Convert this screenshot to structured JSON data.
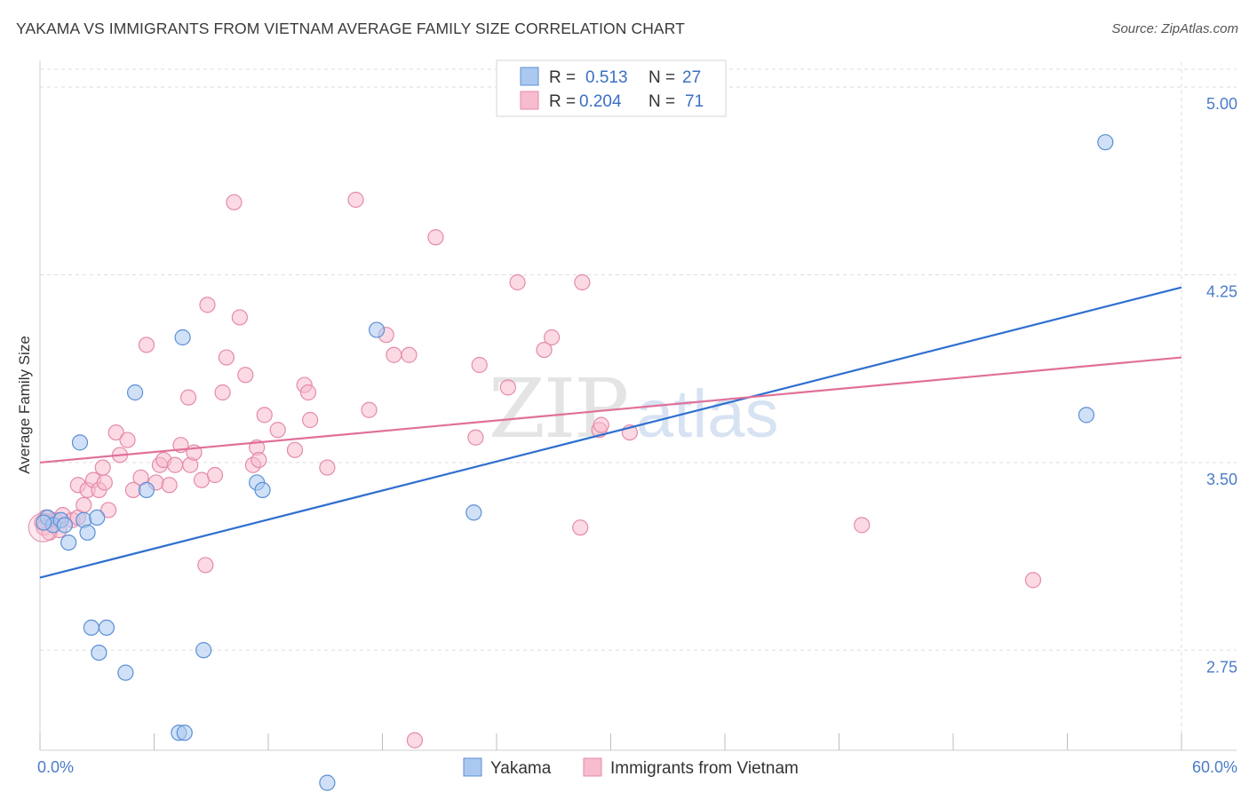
{
  "title": "YAKAMA VS IMMIGRANTS FROM VIETNAM AVERAGE FAMILY SIZE CORRELATION CHART",
  "source": "Source: ZipAtlas.com",
  "watermark": {
    "zip": "ZIP",
    "atlas": "atlas"
  },
  "colors": {
    "blue_fill": "#aac8f0",
    "blue_stroke": "#5b8fd6",
    "blue_line": "#2f6fcf",
    "pink_fill": "#f7bccd",
    "pink_stroke": "#e58aa8",
    "pink_line": "#e0709a",
    "axis_label": "#4a7cc8",
    "grid": "#dddddd"
  },
  "legend": {
    "rows": [
      {
        "r_label": "R =",
        "r_value": "0.513",
        "n_label": "N =",
        "n_value": "27"
      },
      {
        "r_label": "R =",
        "r_value": "0.204",
        "n_label": "N =",
        "n_value": "71"
      }
    ]
  },
  "chart_data": {
    "type": "scatter",
    "title": "YAKAMA VS IMMIGRANTS FROM VIETNAM AVERAGE FAMILY SIZE CORRELATION CHART",
    "xlabel": "",
    "ylabel": "Average Family Size",
    "xlim": [
      0,
      60
    ],
    "ylim": [
      2.35,
      5.1
    ],
    "x_tick_labels": [
      {
        "value": 0,
        "label": "0.0%"
      },
      {
        "value": 60,
        "label": "60.0%"
      }
    ],
    "x_minor_ticks": [
      0,
      6,
      12,
      18,
      24,
      30,
      36,
      42,
      48,
      54,
      60
    ],
    "y_ticks": [
      {
        "value": 5.0,
        "label": "5.00"
      },
      {
        "value": 4.25,
        "label": "4.25"
      },
      {
        "value": 3.5,
        "label": "3.50"
      },
      {
        "value": 2.75,
        "label": "2.75"
      }
    ],
    "grid": true,
    "legend_position": "top-center",
    "series": [
      {
        "name": "Yakama",
        "color": "blue",
        "trend": {
          "x": [
            0,
            60
          ],
          "y": [
            3.04,
            4.2
          ]
        },
        "points": [
          [
            0.4,
            3.28
          ],
          [
            0.7,
            3.25
          ],
          [
            1.1,
            3.27
          ],
          [
            1.3,
            3.25
          ],
          [
            1.5,
            3.18
          ],
          [
            2.1,
            3.58
          ],
          [
            2.3,
            3.27
          ],
          [
            2.5,
            3.22
          ],
          [
            3.0,
            3.28
          ],
          [
            2.7,
            2.84
          ],
          [
            3.5,
            2.84
          ],
          [
            3.1,
            2.74
          ],
          [
            4.5,
            2.66
          ],
          [
            5.6,
            3.39
          ],
          [
            5.0,
            3.78
          ],
          [
            7.5,
            4.0
          ],
          [
            7.3,
            2.42
          ],
          [
            7.6,
            2.42
          ],
          [
            8.6,
            2.75
          ],
          [
            11.4,
            3.42
          ],
          [
            11.7,
            3.39
          ],
          [
            15.1,
            2.22
          ],
          [
            17.7,
            4.03
          ],
          [
            22.8,
            3.3
          ],
          [
            56.0,
            4.78
          ],
          [
            55.0,
            3.69
          ],
          [
            0.2,
            3.26
          ]
        ]
      },
      {
        "name": "Immigrants from Vietnam",
        "color": "pink",
        "trend": {
          "x": [
            0,
            60
          ],
          "y": [
            3.5,
            3.92
          ]
        },
        "points": [
          [
            0.3,
            3.28
          ],
          [
            0.8,
            3.27
          ],
          [
            1.2,
            3.29
          ],
          [
            1.7,
            3.27
          ],
          [
            2.0,
            3.28
          ],
          [
            2.3,
            3.33
          ],
          [
            2.0,
            3.41
          ],
          [
            2.5,
            3.39
          ],
          [
            2.8,
            3.43
          ],
          [
            3.1,
            3.39
          ],
          [
            3.3,
            3.48
          ],
          [
            3.4,
            3.42
          ],
          [
            3.6,
            3.31
          ],
          [
            4.0,
            3.62
          ],
          [
            4.2,
            3.53
          ],
          [
            4.6,
            3.59
          ],
          [
            4.9,
            3.39
          ],
          [
            5.3,
            3.44
          ],
          [
            5.6,
            3.97
          ],
          [
            6.1,
            3.42
          ],
          [
            6.3,
            3.49
          ],
          [
            6.5,
            3.51
          ],
          [
            6.8,
            3.41
          ],
          [
            7.1,
            3.49
          ],
          [
            7.4,
            3.57
          ],
          [
            7.9,
            3.49
          ],
          [
            7.8,
            3.76
          ],
          [
            8.1,
            3.54
          ],
          [
            8.5,
            3.43
          ],
          [
            8.8,
            4.13
          ],
          [
            8.7,
            3.09
          ],
          [
            9.2,
            3.45
          ],
          [
            9.6,
            3.78
          ],
          [
            9.8,
            3.92
          ],
          [
            10.2,
            4.54
          ],
          [
            10.5,
            4.08
          ],
          [
            10.8,
            3.85
          ],
          [
            11.2,
            3.49
          ],
          [
            11.4,
            3.56
          ],
          [
            11.5,
            3.51
          ],
          [
            11.8,
            3.69
          ],
          [
            12.5,
            3.63
          ],
          [
            13.4,
            3.55
          ],
          [
            13.9,
            3.81
          ],
          [
            14.1,
            3.78
          ],
          [
            14.2,
            3.67
          ],
          [
            15.1,
            3.48
          ],
          [
            16.6,
            4.55
          ],
          [
            17.3,
            3.71
          ],
          [
            18.2,
            4.01
          ],
          [
            18.6,
            3.93
          ],
          [
            19.4,
            3.93
          ],
          [
            19.7,
            2.39
          ],
          [
            20.8,
            4.4
          ],
          [
            22.9,
            3.6
          ],
          [
            23.1,
            3.89
          ],
          [
            24.6,
            3.8
          ],
          [
            25.1,
            4.22
          ],
          [
            26.5,
            3.95
          ],
          [
            26.9,
            4.0
          ],
          [
            28.5,
            4.22
          ],
          [
            28.4,
            3.24
          ],
          [
            29.4,
            3.63
          ],
          [
            29.5,
            3.65
          ],
          [
            31.0,
            3.62
          ],
          [
            43.2,
            3.25
          ],
          [
            52.2,
            3.03
          ],
          [
            0.1,
            3.26
          ],
          [
            0.2,
            3.24
          ],
          [
            0.5,
            3.22
          ],
          [
            1.0,
            3.23
          ]
        ]
      }
    ]
  },
  "bottom_legend": [
    {
      "label": "Yakama",
      "color": "blue"
    },
    {
      "label": "Immigrants from Vietnam",
      "color": "pink"
    }
  ]
}
